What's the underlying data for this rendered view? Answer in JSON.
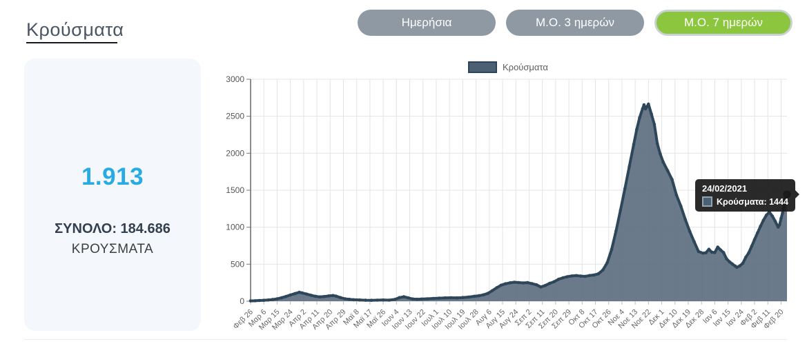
{
  "page": {
    "title": "Κρούσματα"
  },
  "toggles": [
    {
      "label": "Ημερήσια",
      "active": false
    },
    {
      "label": "Μ.Ο. 3 ημερών",
      "active": false
    },
    {
      "label": "Μ.Ο. 7 ημερών",
      "active": true
    }
  ],
  "summary": {
    "latest_value": "1.913",
    "total_line": "ΣΥΝΟΛΟ: 184.686",
    "unit_line": "ΚΡΟΥΣΜΑΤΑ"
  },
  "legend": {
    "label": "Κρούσματα"
  },
  "tooltip": {
    "date": "24/02/2021",
    "value_line": "Κρούσματα: 1444"
  },
  "colors": {
    "accent_blue": "#29abe2",
    "button_gray": "#8e99a3",
    "button_green": "#8cc63f",
    "area_fill": "#56687a",
    "line": "#2e4659",
    "grid": "#e4e4e4",
    "tooltip_bg": "#181818"
  },
  "chart_data": {
    "type": "area",
    "title": "",
    "series_name": "Κρούσματα",
    "legend_position": "top",
    "grid": true,
    "ylabel": "",
    "xlabel": "",
    "ylim": [
      0,
      3000
    ],
    "y_ticks": [
      0,
      500,
      1000,
      1500,
      2000,
      2500,
      3000
    ],
    "x_range_days": 364,
    "x_tick_interval_days": 9,
    "x_tick_labels": [
      "Φεβ 26",
      "Μαρ 6",
      "Μαρ 15",
      "Μαρ 24",
      "Απρ 2",
      "Απρ 11",
      "Απρ 20",
      "Απρ 29",
      "Μαϊ 8",
      "Μαϊ 17",
      "Μαϊ 26",
      "Ιουν 4",
      "Ιουν 13",
      "Ιουν 22",
      "Ιουλ 1",
      "Ιουλ 10",
      "Ιουλ 19",
      "Ιουλ 28",
      "Αυγ 6",
      "Αυγ 15",
      "Αυγ 24",
      "Σεπ 2",
      "Σεπ 11",
      "Σεπ 20",
      "Σεπ 29",
      "Οκτ 8",
      "Οκτ 17",
      "Οκτ 26",
      "Νοε 4",
      "Νοε 13",
      "Νοε 22",
      "Δεκ 1",
      "Δεκ 10",
      "Δεκ 19",
      "Δεκ 28",
      "Ιαν 6",
      "Ιαν 15",
      "Ιαν 24",
      "Φεβ 2",
      "Φεβ 11",
      "Φεβ 20"
    ],
    "points": [
      [
        0,
        4
      ],
      [
        3,
        6
      ],
      [
        6,
        9
      ],
      [
        9,
        12
      ],
      [
        12,
        16
      ],
      [
        15,
        22
      ],
      [
        18,
        32
      ],
      [
        21,
        46
      ],
      [
        24,
        63
      ],
      [
        27,
        84
      ],
      [
        30,
        102
      ],
      [
        33,
        120
      ],
      [
        35,
        112
      ],
      [
        38,
        96
      ],
      [
        41,
        80
      ],
      [
        44,
        66
      ],
      [
        47,
        58
      ],
      [
        50,
        62
      ],
      [
        53,
        71
      ],
      [
        56,
        76
      ],
      [
        58,
        68
      ],
      [
        61,
        48
      ],
      [
        64,
        33
      ],
      [
        67,
        25
      ],
      [
        70,
        20
      ],
      [
        74,
        16
      ],
      [
        78,
        13
      ],
      [
        82,
        12
      ],
      [
        86,
        14
      ],
      [
        90,
        16
      ],
      [
        94,
        14
      ],
      [
        98,
        24
      ],
      [
        101,
        48
      ],
      [
        104,
        60
      ],
      [
        107,
        45
      ],
      [
        110,
        30
      ],
      [
        113,
        26
      ],
      [
        116,
        29
      ],
      [
        120,
        33
      ],
      [
        124,
        37
      ],
      [
        128,
        41
      ],
      [
        132,
        45
      ],
      [
        136,
        47
      ],
      [
        140,
        45
      ],
      [
        144,
        49
      ],
      [
        148,
        56
      ],
      [
        152,
        66
      ],
      [
        155,
        74
      ],
      [
        158,
        86
      ],
      [
        161,
        105
      ],
      [
        164,
        142
      ],
      [
        167,
        182
      ],
      [
        170,
        216
      ],
      [
        173,
        236
      ],
      [
        176,
        248
      ],
      [
        179,
        256
      ],
      [
        182,
        252
      ],
      [
        185,
        247
      ],
      [
        188,
        251
      ],
      [
        191,
        237
      ],
      [
        194,
        222
      ],
      [
        197,
        192
      ],
      [
        200,
        212
      ],
      [
        203,
        241
      ],
      [
        206,
        263
      ],
      [
        209,
        296
      ],
      [
        212,
        316
      ],
      [
        215,
        331
      ],
      [
        218,
        341
      ],
      [
        221,
        346
      ],
      [
        224,
        339
      ],
      [
        227,
        335
      ],
      [
        230,
        347
      ],
      [
        233,
        354
      ],
      [
        236,
        370
      ],
      [
        239,
        420
      ],
      [
        242,
        520
      ],
      [
        245,
        700
      ],
      [
        248,
        950
      ],
      [
        251,
        1230
      ],
      [
        254,
        1520
      ],
      [
        257,
        1820
      ],
      [
        260,
        2120
      ],
      [
        262,
        2320
      ],
      [
        264,
        2480
      ],
      [
        266,
        2600
      ],
      [
        267,
        2655
      ],
      [
        268,
        2600
      ],
      [
        269,
        2630
      ],
      [
        270,
        2665
      ],
      [
        272,
        2530
      ],
      [
        274,
        2390
      ],
      [
        276,
        2130
      ],
      [
        278,
        1990
      ],
      [
        280,
        1880
      ],
      [
        283,
        1765
      ],
      [
        286,
        1645
      ],
      [
        289,
        1435
      ],
      [
        292,
        1285
      ],
      [
        295,
        1105
      ],
      [
        298,
        945
      ],
      [
        301,
        805
      ],
      [
        304,
        672
      ],
      [
        307,
        648
      ],
      [
        309,
        655
      ],
      [
        311,
        702
      ],
      [
        313,
        662
      ],
      [
        315,
        658
      ],
      [
        317,
        731
      ],
      [
        319,
        692
      ],
      [
        321,
        657
      ],
      [
        323,
        572
      ],
      [
        325,
        532
      ],
      [
        327,
        502
      ],
      [
        329,
        472
      ],
      [
        330,
        458
      ],
      [
        332,
        477
      ],
      [
        334,
        512
      ],
      [
        336,
        592
      ],
      [
        338,
        652
      ],
      [
        340,
        742
      ],
      [
        342,
        832
      ],
      [
        344,
        922
      ],
      [
        346,
        1012
      ],
      [
        348,
        1092
      ],
      [
        350,
        1162
      ],
      [
        352,
        1206
      ],
      [
        354,
        1152
      ],
      [
        356,
        1082
      ],
      [
        358,
        1002
      ],
      [
        359,
        1032
      ],
      [
        360,
        1122
      ],
      [
        361,
        1192
      ],
      [
        362,
        1302
      ],
      [
        363,
        1382
      ],
      [
        364,
        1444
      ]
    ],
    "highlight_point": {
      "day": 364,
      "value": 1444,
      "date": "24/02/2021"
    }
  }
}
